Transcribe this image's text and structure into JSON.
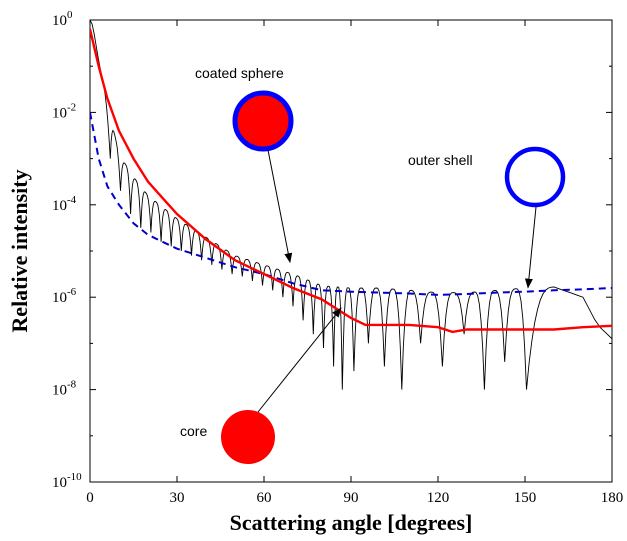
{
  "chart_data": {
    "type": "line",
    "title": "",
    "xlabel": "Scattering angle [degrees]",
    "ylabel": "Relative intensity",
    "xlim": [
      0,
      180
    ],
    "ylim_exponents": [
      -10,
      0
    ],
    "y_scale": "log",
    "x_ticks": [
      "0",
      "30",
      "60",
      "90",
      "120",
      "150",
      "180"
    ],
    "y_ticks": [
      {
        "base": "10",
        "exp": "0"
      },
      {
        "base": "10",
        "exp": "-2"
      },
      {
        "base": "10",
        "exp": "-4"
      },
      {
        "base": "10",
        "exp": "-6"
      },
      {
        "base": "10",
        "exp": "-8"
      },
      {
        "base": "10",
        "exp": "-10"
      }
    ],
    "grid": false,
    "series": [
      {
        "name": "coated sphere",
        "color": "#000000",
        "style": "solid-thin-oscillating",
        "envelope_x": [
          0,
          5,
          10,
          15,
          20,
          30,
          40,
          50,
          60,
          70,
          80,
          90,
          100,
          110,
          120,
          130,
          140,
          150,
          160,
          170,
          175,
          180
        ],
        "envelope_log10": [
          0,
          -1.5,
          -2.9,
          -3.4,
          -3.8,
          -4.3,
          -4.7,
          -5.1,
          -5.3,
          -5.5,
          -5.75,
          -5.8,
          -5.8,
          -5.85,
          -5.9,
          -5.9,
          -5.85,
          -5.8,
          -5.78,
          -6.0,
          -6.6,
          -6.9
        ],
        "minima_x": [
          7,
          10.5,
          14,
          17.5,
          21,
          24.5,
          28,
          31.5,
          35,
          38.5,
          42,
          45.5,
          49,
          52.5,
          56,
          59.5,
          63,
          66.5,
          70,
          73.5,
          77,
          80.5,
          84,
          87,
          91,
          96,
          101.5,
          107.5,
          114,
          121.5,
          129,
          136,
          143,
          150.5
        ],
        "minima_log10": [
          -3.0,
          -3.7,
          -4.2,
          -4.5,
          -4.6,
          -4.8,
          -4.9,
          -5.0,
          -5.1,
          -5.2,
          -5.3,
          -5.4,
          -5.5,
          -5.55,
          -5.65,
          -5.75,
          -5.85,
          -6.0,
          -6.2,
          -6.5,
          -6.8,
          -7.1,
          -7.5,
          -8.0,
          -7.6,
          -7.0,
          -7.5,
          -8.0,
          -7.0,
          -7.5,
          -6.8,
          -8.0,
          -7.4,
          -8.0
        ]
      },
      {
        "name": "core",
        "color": "#ff0000",
        "style": "solid-thick",
        "x": [
          0,
          3,
          6,
          10,
          15,
          20,
          25,
          30,
          40,
          50,
          60,
          70,
          80,
          85,
          90,
          95,
          100,
          110,
          120,
          125,
          130,
          140,
          150,
          160,
          170,
          180
        ],
        "log10": [
          -0.2,
          -1.0,
          -1.7,
          -2.4,
          -3.0,
          -3.5,
          -3.85,
          -4.2,
          -4.75,
          -5.2,
          -5.5,
          -5.8,
          -6.05,
          -6.25,
          -6.45,
          -6.6,
          -6.6,
          -6.6,
          -6.65,
          -6.75,
          -6.7,
          -6.7,
          -6.7,
          -6.7,
          -6.65,
          -6.62
        ]
      },
      {
        "name": "outer shell",
        "color": "#0000cc",
        "style": "dashed",
        "x": [
          0,
          3,
          6,
          10,
          15,
          20,
          25,
          30,
          40,
          50,
          60,
          70,
          80,
          90,
          100,
          110,
          120,
          130,
          140,
          150,
          160,
          170,
          180
        ],
        "log10": [
          -2.0,
          -3.0,
          -3.6,
          -4.0,
          -4.4,
          -4.65,
          -4.8,
          -4.95,
          -5.15,
          -5.35,
          -5.5,
          -5.7,
          -5.85,
          -5.88,
          -5.9,
          -5.92,
          -5.95,
          -5.93,
          -5.9,
          -5.88,
          -5.85,
          -5.83,
          -5.8
        ]
      }
    ],
    "annotations": [
      {
        "label": "coated sphere",
        "icon": "coated-sphere-icon"
      },
      {
        "label": "outer shell",
        "icon": "outer-shell-icon"
      },
      {
        "label": "core",
        "icon": "core-icon"
      }
    ],
    "icon_colors": {
      "core": "#ff0000",
      "shell": "#0000ff"
    }
  }
}
